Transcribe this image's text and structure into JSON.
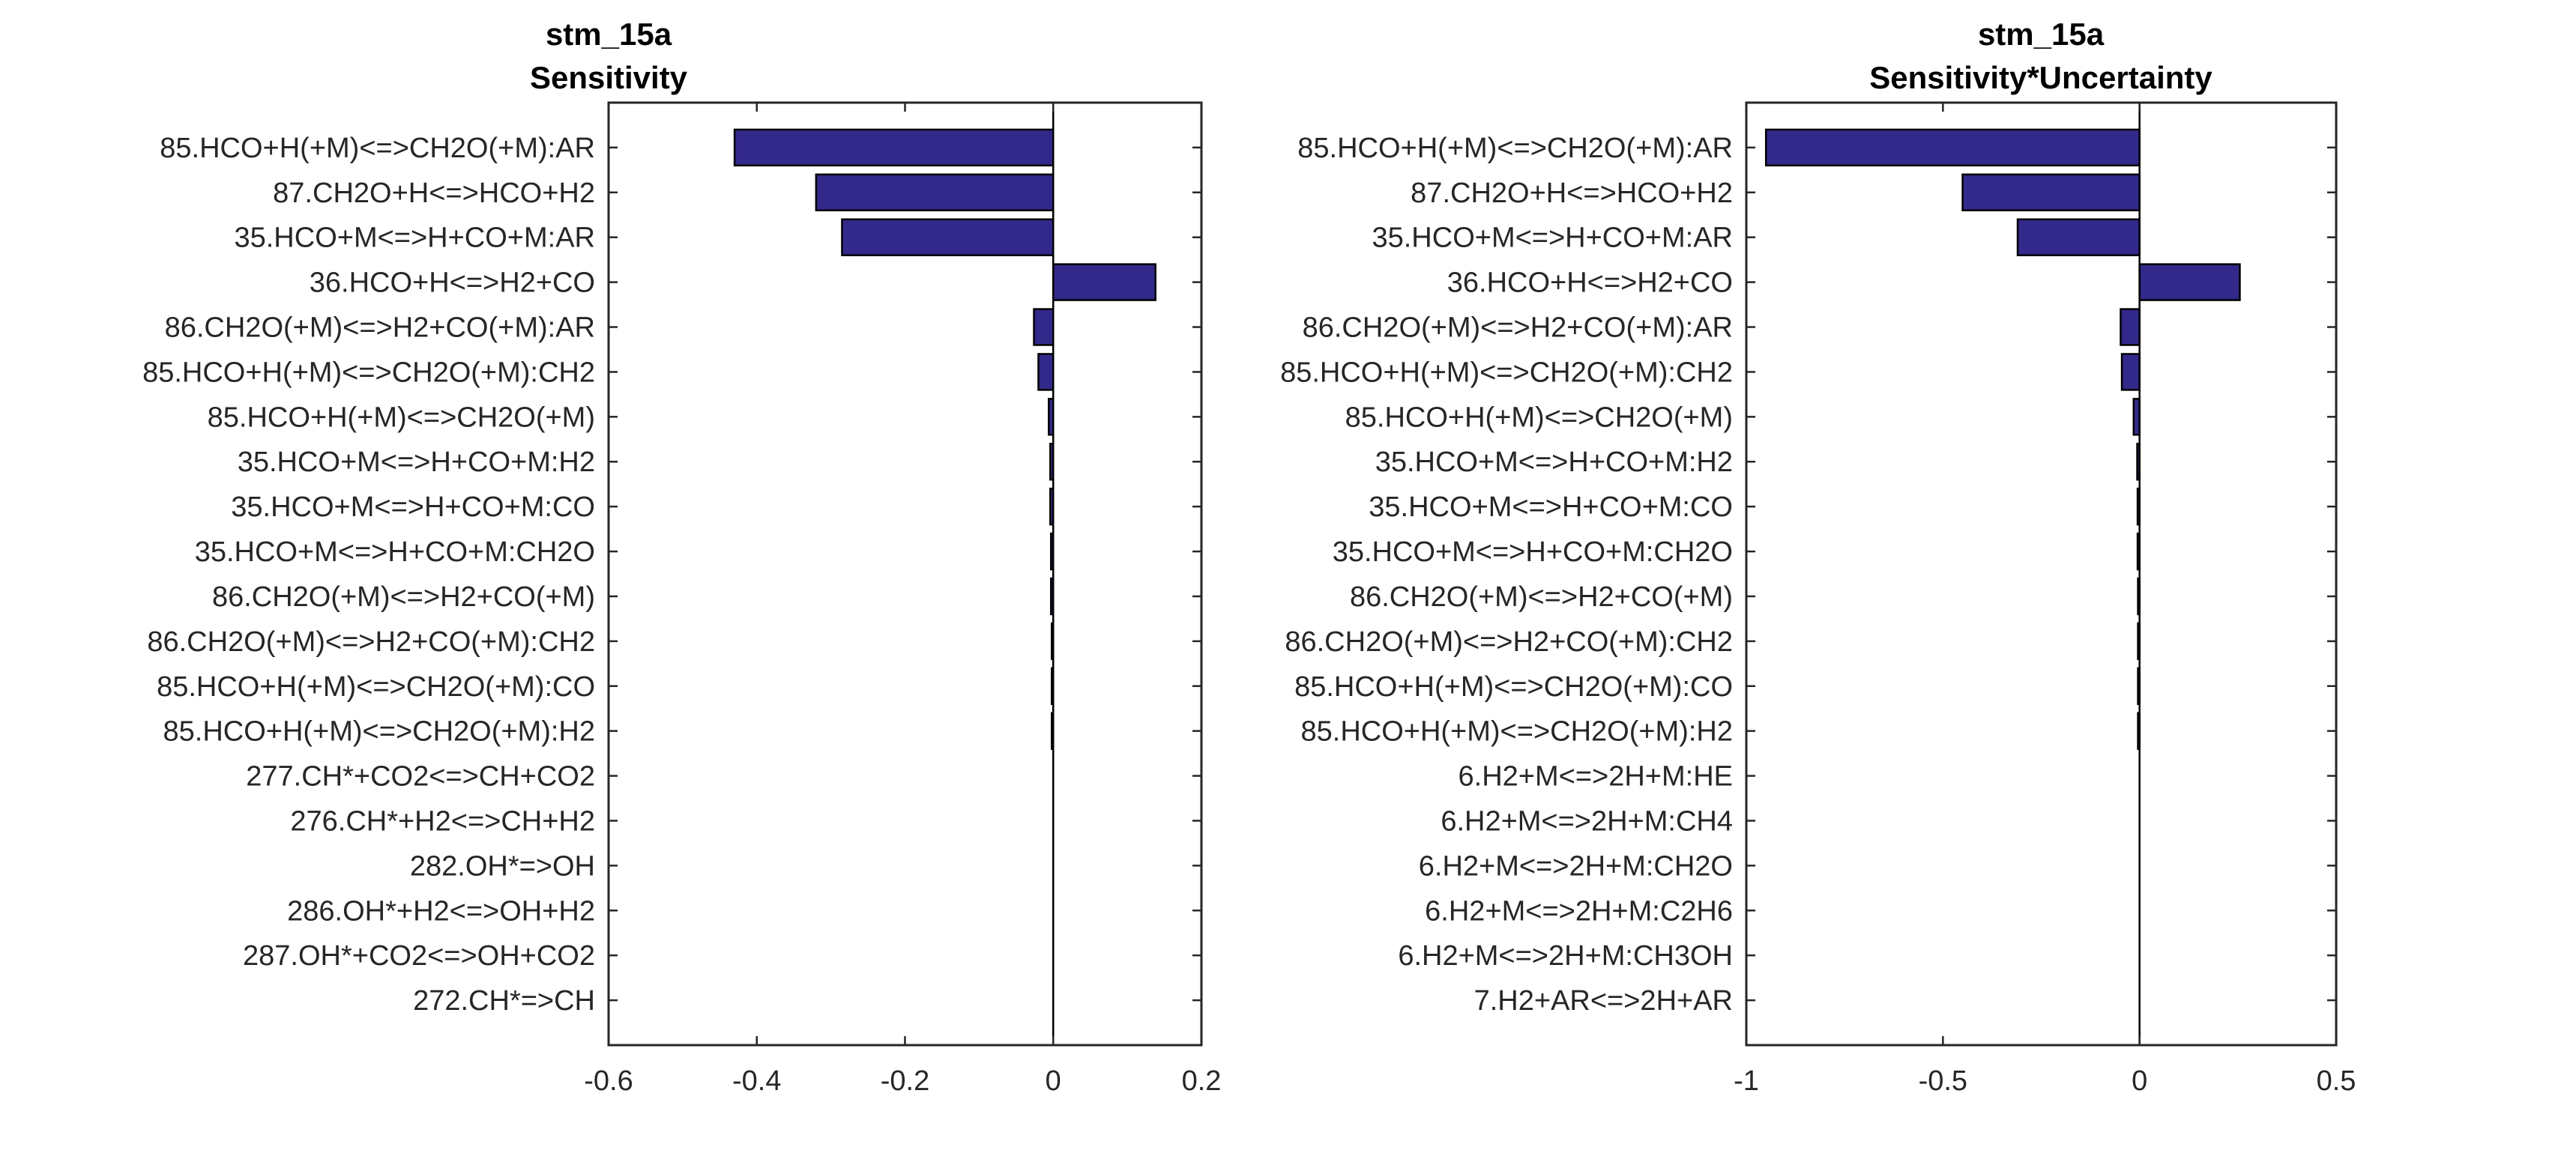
{
  "figure": {
    "background": "#ffffff",
    "bar_color": "#33298a",
    "axis_color": "#262626"
  },
  "chart_data": [
    {
      "type": "bar",
      "orientation": "horizontal",
      "title": [
        "stm_15a",
        "Sensitivity"
      ],
      "categories": [
        "85.HCO+H(+M)<=>CH2O(+M):AR",
        "87.CH2O+H<=>HCO+H2",
        "35.HCO+M<=>H+CO+M:AR",
        "36.HCO+H<=>H2+CO",
        "86.CH2O(+M)<=>H2+CO(+M):AR",
        "85.HCO+H(+M)<=>CH2O(+M):CH2",
        "85.HCO+H(+M)<=>CH2O(+M)",
        "35.HCO+M<=>H+CO+M:H2",
        "35.HCO+M<=>H+CO+M:CO",
        "35.HCO+M<=>H+CO+M:CH2O",
        "86.CH2O(+M)<=>H2+CO(+M)",
        "86.CH2O(+M)<=>H2+CO(+M):CH2",
        "85.HCO+H(+M)<=>CH2O(+M):CO",
        "85.HCO+H(+M)<=>CH2O(+M):H2",
        "277.CH*+CO2<=>CH+CO2",
        "276.CH*+H2<=>CH+H2",
        "282.OH*=>OH",
        "286.OH*+H2<=>OH+H2",
        "287.OH*+CO2<=>OH+CO2",
        "272.CH*=>CH"
      ],
      "values": [
        -0.43,
        -0.32,
        -0.285,
        0.138,
        -0.026,
        -0.02,
        -0.006,
        -0.004,
        -0.004,
        -0.003,
        -0.003,
        -0.002,
        -0.002,
        -0.002,
        0.0,
        0.0,
        0.0,
        0.0,
        0.0,
        0.0
      ],
      "xlim": [
        -0.6,
        0.2
      ],
      "xticks": [
        -0.6,
        -0.4,
        -0.2,
        0,
        0.2
      ],
      "xtick_labels": [
        "-0.6",
        "-0.4",
        "-0.2",
        "0",
        "0.2"
      ],
      "grid": false,
      "legend": "none"
    },
    {
      "type": "bar",
      "orientation": "horizontal",
      "title": [
        "stm_15a",
        "Sensitivity*Uncertainty"
      ],
      "categories": [
        "85.HCO+H(+M)<=>CH2O(+M):AR",
        "87.CH2O+H<=>HCO+H2",
        "35.HCO+M<=>H+CO+M:AR",
        "36.HCO+H<=>H2+CO",
        "86.CH2O(+M)<=>H2+CO(+M):AR",
        "85.HCO+H(+M)<=>CH2O(+M):CH2",
        "85.HCO+H(+M)<=>CH2O(+M)",
        "35.HCO+M<=>H+CO+M:H2",
        "35.HCO+M<=>H+CO+M:CO",
        "35.HCO+M<=>H+CO+M:CH2O",
        "86.CH2O(+M)<=>H2+CO(+M)",
        "86.CH2O(+M)<=>H2+CO(+M):CH2",
        "85.HCO+H(+M)<=>CH2O(+M):CO",
        "85.HCO+H(+M)<=>CH2O(+M):H2",
        "6.H2+M<=>2H+M:HE",
        "6.H2+M<=>2H+M:CH4",
        "6.H2+M<=>2H+M:CH2O",
        "6.H2+M<=>2H+M:C2H6",
        "6.H2+M<=>2H+M:CH3OH",
        "7.H2+AR<=>2H+AR"
      ],
      "values": [
        -0.95,
        -0.45,
        -0.31,
        0.255,
        -0.048,
        -0.045,
        -0.015,
        -0.006,
        -0.005,
        -0.005,
        -0.004,
        -0.004,
        -0.004,
        -0.004,
        0.0,
        0.0,
        0.0,
        0.0,
        0.0,
        0.0
      ],
      "xlim": [
        -1.0,
        0.5
      ],
      "xticks": [
        -1,
        -0.5,
        0,
        0.5
      ],
      "xtick_labels": [
        "-1",
        "-0.5",
        "0",
        "0.5"
      ],
      "grid": false,
      "legend": "none"
    }
  ]
}
